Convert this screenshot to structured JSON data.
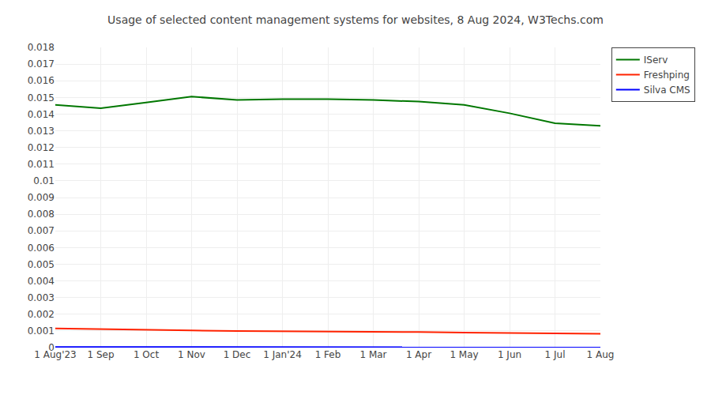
{
  "chart_data": {
    "type": "line",
    "title": "Usage of selected content management systems for websites, 8 Aug 2024, W3Techs.com",
    "categories": [
      "1 Aug'23",
      "1 Sep",
      "1 Oct",
      "1 Nov",
      "1 Dec",
      "1 Jan'24",
      "1 Feb",
      "1 Mar",
      "1 Apr",
      "1 May",
      "1 Jun",
      "1 Jul",
      "1 Aug"
    ],
    "series": [
      {
        "name": "IServ",
        "color": "#007700",
        "values": [
          0.01455,
          0.01435,
          0.0147,
          0.01505,
          0.01485,
          0.0149,
          0.0149,
          0.01485,
          0.01475,
          0.01455,
          0.01405,
          0.01345,
          0.0133
        ]
      },
      {
        "name": "Freshping",
        "color": "#ff2200",
        "values": [
          0.00115,
          0.0011,
          0.00105,
          0.00103,
          0.001,
          0.00099,
          0.00098,
          0.00096,
          0.00093,
          0.0009,
          0.00087,
          0.00085,
          0.00083
        ]
      },
      {
        "name": "Silva CMS",
        "color": "#0000ff",
        "values": [
          4e-05,
          4e-05,
          4e-05,
          3e-05,
          3e-05,
          3e-05,
          3e-05,
          3e-05,
          2e-05,
          2e-05,
          2e-05,
          2e-05,
          2e-05
        ]
      }
    ],
    "ylim": [
      0,
      0.018
    ],
    "yticks": [
      0,
      0.001,
      0.002,
      0.003,
      0.004,
      0.005,
      0.006,
      0.007,
      0.008,
      0.009,
      0.01,
      0.011,
      0.012,
      0.013,
      0.014,
      0.015,
      0.016,
      0.017,
      0.018
    ],
    "grid": true,
    "legend": "upper right"
  }
}
